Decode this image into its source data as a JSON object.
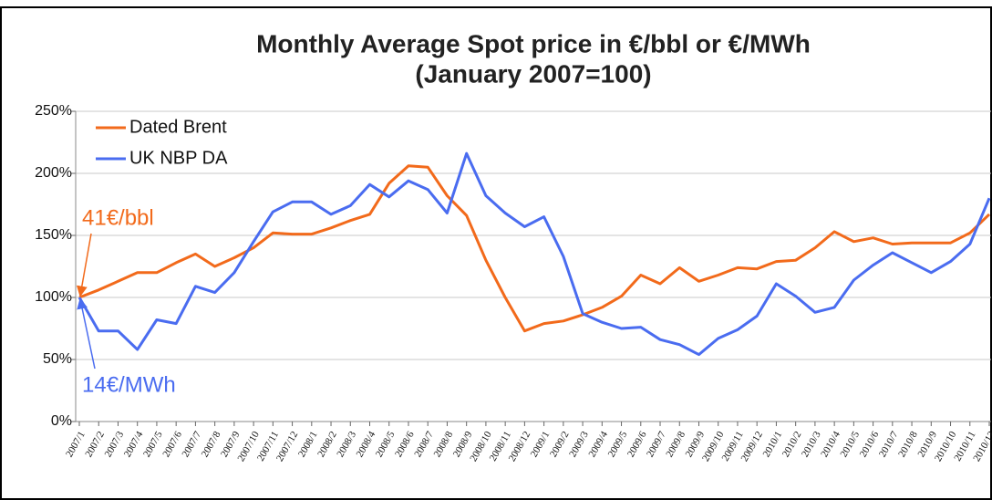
{
  "chart_data": {
    "type": "line",
    "title": "Monthly Average Spot price in €/bbl or €/MWh",
    "subtitle": "(January 2007=100)",
    "categories": [
      "2007/1",
      "2007/2",
      "2007/3",
      "2007/4",
      "2007/5",
      "2007/6",
      "2007/7",
      "2007/8",
      "2007/9",
      "2007/10",
      "2007/11",
      "2007/12",
      "2008/1",
      "2008/2",
      "2008/3",
      "2008/4",
      "2008/5",
      "2008/6",
      "2008/7",
      "2008/8",
      "2008/9",
      "2008/10",
      "2008/11",
      "2008/12",
      "2009/1",
      "2009/2",
      "2009/3",
      "2009/4",
      "2009/5",
      "2009/6",
      "2009/7",
      "2009/8",
      "2009/9",
      "2009/10",
      "2009/11",
      "2009/12",
      "2010/1",
      "2010/2",
      "2010/3",
      "2010/4",
      "2010/5",
      "2010/6",
      "2010/7",
      "2010/8",
      "2010/9",
      "2010/10",
      "2010/11",
      "2010/12"
    ],
    "series": [
      {
        "name": "Dated Brent",
        "color": "#f26a1b",
        "values": [
          100,
          106,
          113,
          120,
          120,
          128,
          135,
          125,
          132,
          140,
          152,
          151,
          151,
          156,
          162,
          167,
          192,
          206,
          205,
          182,
          166,
          130,
          100,
          73,
          79,
          81,
          86,
          92,
          101,
          118,
          111,
          124,
          113,
          118,
          124,
          123,
          129,
          130,
          140,
          153,
          145,
          148,
          143,
          144,
          144,
          144,
          152,
          167
        ]
      },
      {
        "name": "UK NBP DA",
        "color": "#4a6cf0",
        "values": [
          100,
          73,
          73,
          58,
          82,
          79,
          109,
          104,
          120,
          145,
          169,
          177,
          177,
          167,
          174,
          191,
          181,
          194,
          187,
          168,
          216,
          182,
          168,
          157,
          165,
          133,
          87,
          80,
          75,
          76,
          66,
          62,
          54,
          67,
          74,
          85,
          111,
          101,
          88,
          92,
          114,
          126,
          136,
          128,
          120,
          129,
          143,
          180
        ]
      }
    ],
    "annotations": [
      {
        "text": "41€/bbl",
        "series": 0
      },
      {
        "text": "14€/MWh",
        "series": 1
      }
    ],
    "ylim": [
      0,
      250
    ],
    "yticks": [
      {
        "value": 0,
        "label": "0%"
      },
      {
        "value": 50,
        "label": "50%"
      },
      {
        "value": 100,
        "label": "100%"
      },
      {
        "value": 150,
        "label": "150%"
      },
      {
        "value": 200,
        "label": "200%"
      },
      {
        "value": 250,
        "label": "250%"
      }
    ],
    "grid": true,
    "legend": "upper left"
  }
}
